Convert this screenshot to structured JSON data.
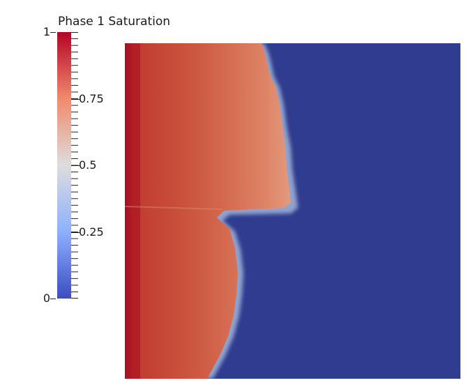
{
  "legend": {
    "title": "Phase 1 Saturation",
    "ticks": [
      {
        "value": 1,
        "label": "1"
      },
      {
        "value": 0.75,
        "label": "0.75"
      },
      {
        "value": 0.5,
        "label": "0.5"
      },
      {
        "value": 0.25,
        "label": "0.25"
      },
      {
        "value": 0,
        "label": "0"
      }
    ],
    "range": [
      0,
      1
    ],
    "colormap": "cool-to-warm",
    "colors": {
      "low": "#3b4cc0",
      "mid": "#dddddd",
      "high": "#b40426"
    }
  },
  "field": {
    "background_color": "#2f3c8f",
    "saturated_colors": {
      "inlet": "#a50f22",
      "bulk": "#c9503a",
      "front": "#e08a6a"
    }
  }
}
